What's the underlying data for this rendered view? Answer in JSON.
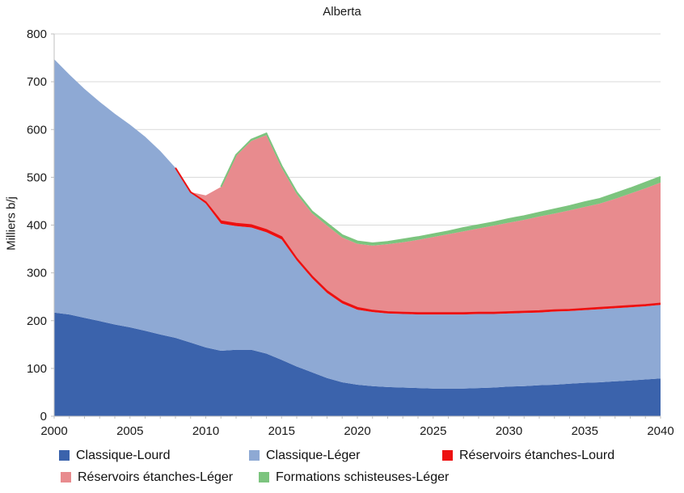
{
  "title": "Alberta",
  "y_axis": {
    "label": "Milliers b/j",
    "ticks": [
      0,
      100,
      200,
      300,
      400,
      500,
      600,
      700,
      800
    ]
  },
  "x_axis": {
    "ticks": [
      2000,
      2005,
      2010,
      2015,
      2020,
      2025,
      2030,
      2035,
      2040
    ]
  },
  "colors": {
    "grid": "#d9d9d9",
    "axis": "#bfbfbf",
    "text": "#1a1a1a"
  },
  "chart_data": {
    "type": "area",
    "stacked": true,
    "title": "Alberta",
    "ylabel": "Milliers b/j",
    "xlabel": "",
    "ylim": [
      0,
      800
    ],
    "xlim": [
      2000,
      2040
    ],
    "grid": true,
    "legend_position": "bottom",
    "x": [
      2000,
      2001,
      2002,
      2003,
      2004,
      2005,
      2006,
      2007,
      2008,
      2009,
      2010,
      2011,
      2012,
      2013,
      2014,
      2015,
      2016,
      2017,
      2018,
      2019,
      2020,
      2021,
      2022,
      2023,
      2024,
      2025,
      2026,
      2027,
      2028,
      2029,
      2030,
      2031,
      2032,
      2033,
      2034,
      2035,
      2036,
      2037,
      2038,
      2039,
      2040
    ],
    "series": [
      {
        "name": "Classique-Lourd",
        "color": "#3b63ac",
        "values": [
          217,
          213,
          206,
          199,
          192,
          186,
          179,
          171,
          164,
          154,
          144,
          137,
          139,
          139,
          131,
          118,
          104,
          92,
          80,
          71,
          66,
          63,
          61,
          60,
          59,
          58,
          58,
          58,
          59,
          60,
          62,
          63,
          65,
          66,
          68,
          70,
          71,
          73,
          75,
          77,
          79
        ]
      },
      {
        "name": "Classique-Léger",
        "color": "#8ea9d4",
        "values": [
          530,
          502,
          479,
          459,
          441,
          424,
          406,
          384,
          356,
          314,
          301,
          266,
          259,
          256,
          254,
          252,
          222,
          197,
          178,
          165,
          157,
          155,
          154,
          154,
          154,
          155,
          155,
          155,
          155,
          154,
          153,
          153,
          152,
          153,
          152,
          152,
          153,
          153,
          153,
          153,
          154
        ]
      },
      {
        "name": "Réservoirs étanches-Lourd",
        "color": "#ed1111",
        "values": [
          0,
          0,
          0,
          0,
          0,
          0,
          0,
          0,
          0,
          1,
          3,
          5,
          5,
          5,
          5,
          5,
          4,
          4,
          4,
          4,
          4,
          3,
          3,
          3,
          3,
          3,
          3,
          3,
          3,
          3,
          3,
          3,
          3,
          3,
          3,
          3,
          3,
          3,
          3,
          3,
          3
        ]
      },
      {
        "name": "Réservoirs étanches-Léger",
        "color": "#e88b8e",
        "values": [
          0,
          0,
          0,
          0,
          0,
          0,
          0,
          0,
          0,
          0,
          14,
          72,
          142,
          176,
          198,
          145,
          135,
          132,
          137,
          134,
          134,
          136,
          142,
          147,
          153,
          159,
          165,
          171,
          176,
          182,
          187,
          192,
          198,
          202,
          208,
          213,
          218,
          226,
          235,
          244,
          253
        ]
      },
      {
        "name": "Formations schisteuses-Léger",
        "color": "#7cc47e",
        "values": [
          0,
          0,
          0,
          0,
          0,
          0,
          0,
          0,
          0,
          0,
          0,
          0,
          2,
          3,
          4,
          4,
          4,
          4,
          5,
          5,
          5,
          5,
          5,
          6,
          6,
          6,
          6,
          7,
          7,
          7,
          8,
          8,
          8,
          9,
          9,
          10,
          10,
          11,
          11,
          12,
          12
        ]
      }
    ]
  },
  "legend": {
    "rows": [
      [
        0,
        1,
        2
      ],
      [
        3,
        4
      ]
    ]
  }
}
